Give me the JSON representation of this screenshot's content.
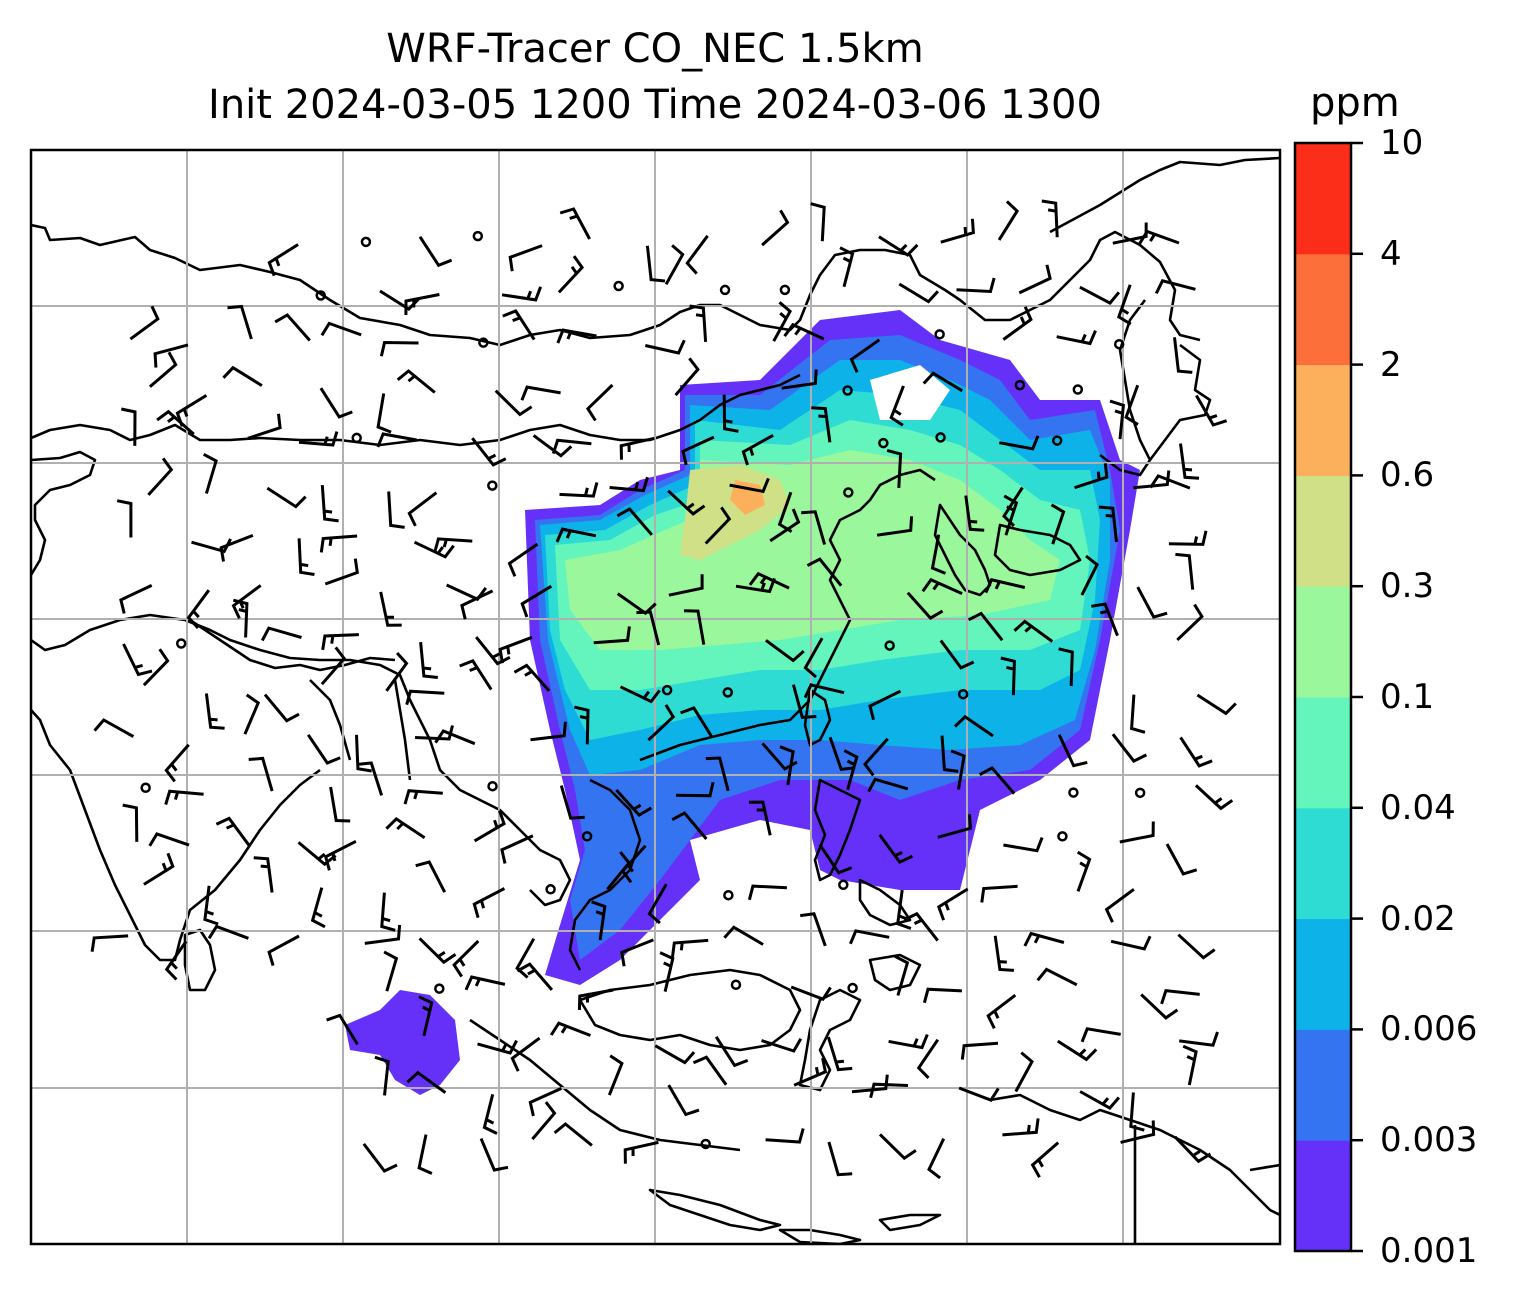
{
  "title": {
    "line1": "WRF-Tracer CO_NEC 1.5km",
    "line2": "Init 2024-03-05 1200 Time 2024-03-06 1300"
  },
  "colorbar": {
    "unit": "ppm",
    "ticks": [
      "0.001",
      "0.003",
      "0.006",
      "0.02",
      "0.04",
      "0.1",
      "0.3",
      "0.6",
      "2",
      "4",
      "10"
    ],
    "colors": [
      "#6530f7",
      "#3574f1",
      "#0db2e9",
      "#2fdcd4",
      "#63f5bb",
      "#9bf79c",
      "#cfe086",
      "#fcb05c",
      "#fc6f3a",
      "#fc2d19"
    ]
  },
  "map": {
    "overlay": "wind barbs",
    "gridlines": true
  }
}
